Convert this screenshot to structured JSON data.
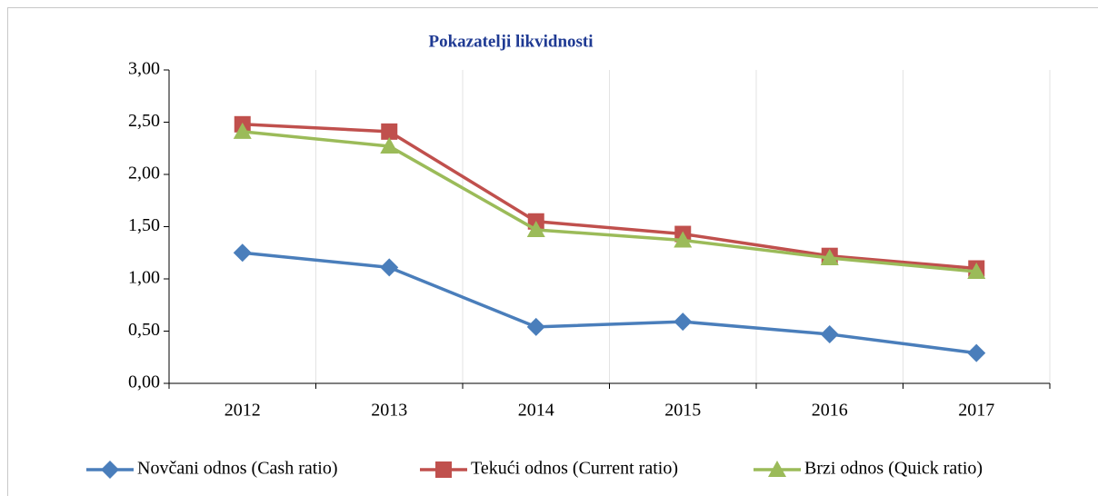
{
  "chart_data": {
    "type": "line",
    "title": "Pokazatelji likvidnosti",
    "categories": [
      "2012",
      "2013",
      "2014",
      "2015",
      "2016",
      "2017"
    ],
    "series": [
      {
        "name": "Novčani odnos (Cash ratio)",
        "color": "#4a7ebb",
        "marker": "diamond",
        "values": [
          1.25,
          1.11,
          0.54,
          0.59,
          0.47,
          0.29
        ]
      },
      {
        "name": "Tekući odnos (Current ratio)",
        "color": "#c0504d",
        "marker": "square",
        "values": [
          2.48,
          2.41,
          1.55,
          1.43,
          1.22,
          1.1
        ]
      },
      {
        "name": "Brzi odnos (Quick ratio)",
        "color": "#9bbb59",
        "marker": "triangle",
        "values": [
          2.41,
          2.27,
          1.47,
          1.37,
          1.2,
          1.07
        ]
      }
    ],
    "ylim": [
      0,
      3
    ],
    "yticks": [
      {
        "value": 0,
        "label": "0,00"
      },
      {
        "value": 0.5,
        "label": "0,50"
      },
      {
        "value": 1,
        "label": "1,00"
      },
      {
        "value": 1.5,
        "label": "1,50"
      },
      {
        "value": 2,
        "label": "2,00"
      },
      {
        "value": 2.5,
        "label": "2,50"
      },
      {
        "value": 3,
        "label": "3,00"
      }
    ],
    "grid": "vertical",
    "legend": "bottom"
  }
}
